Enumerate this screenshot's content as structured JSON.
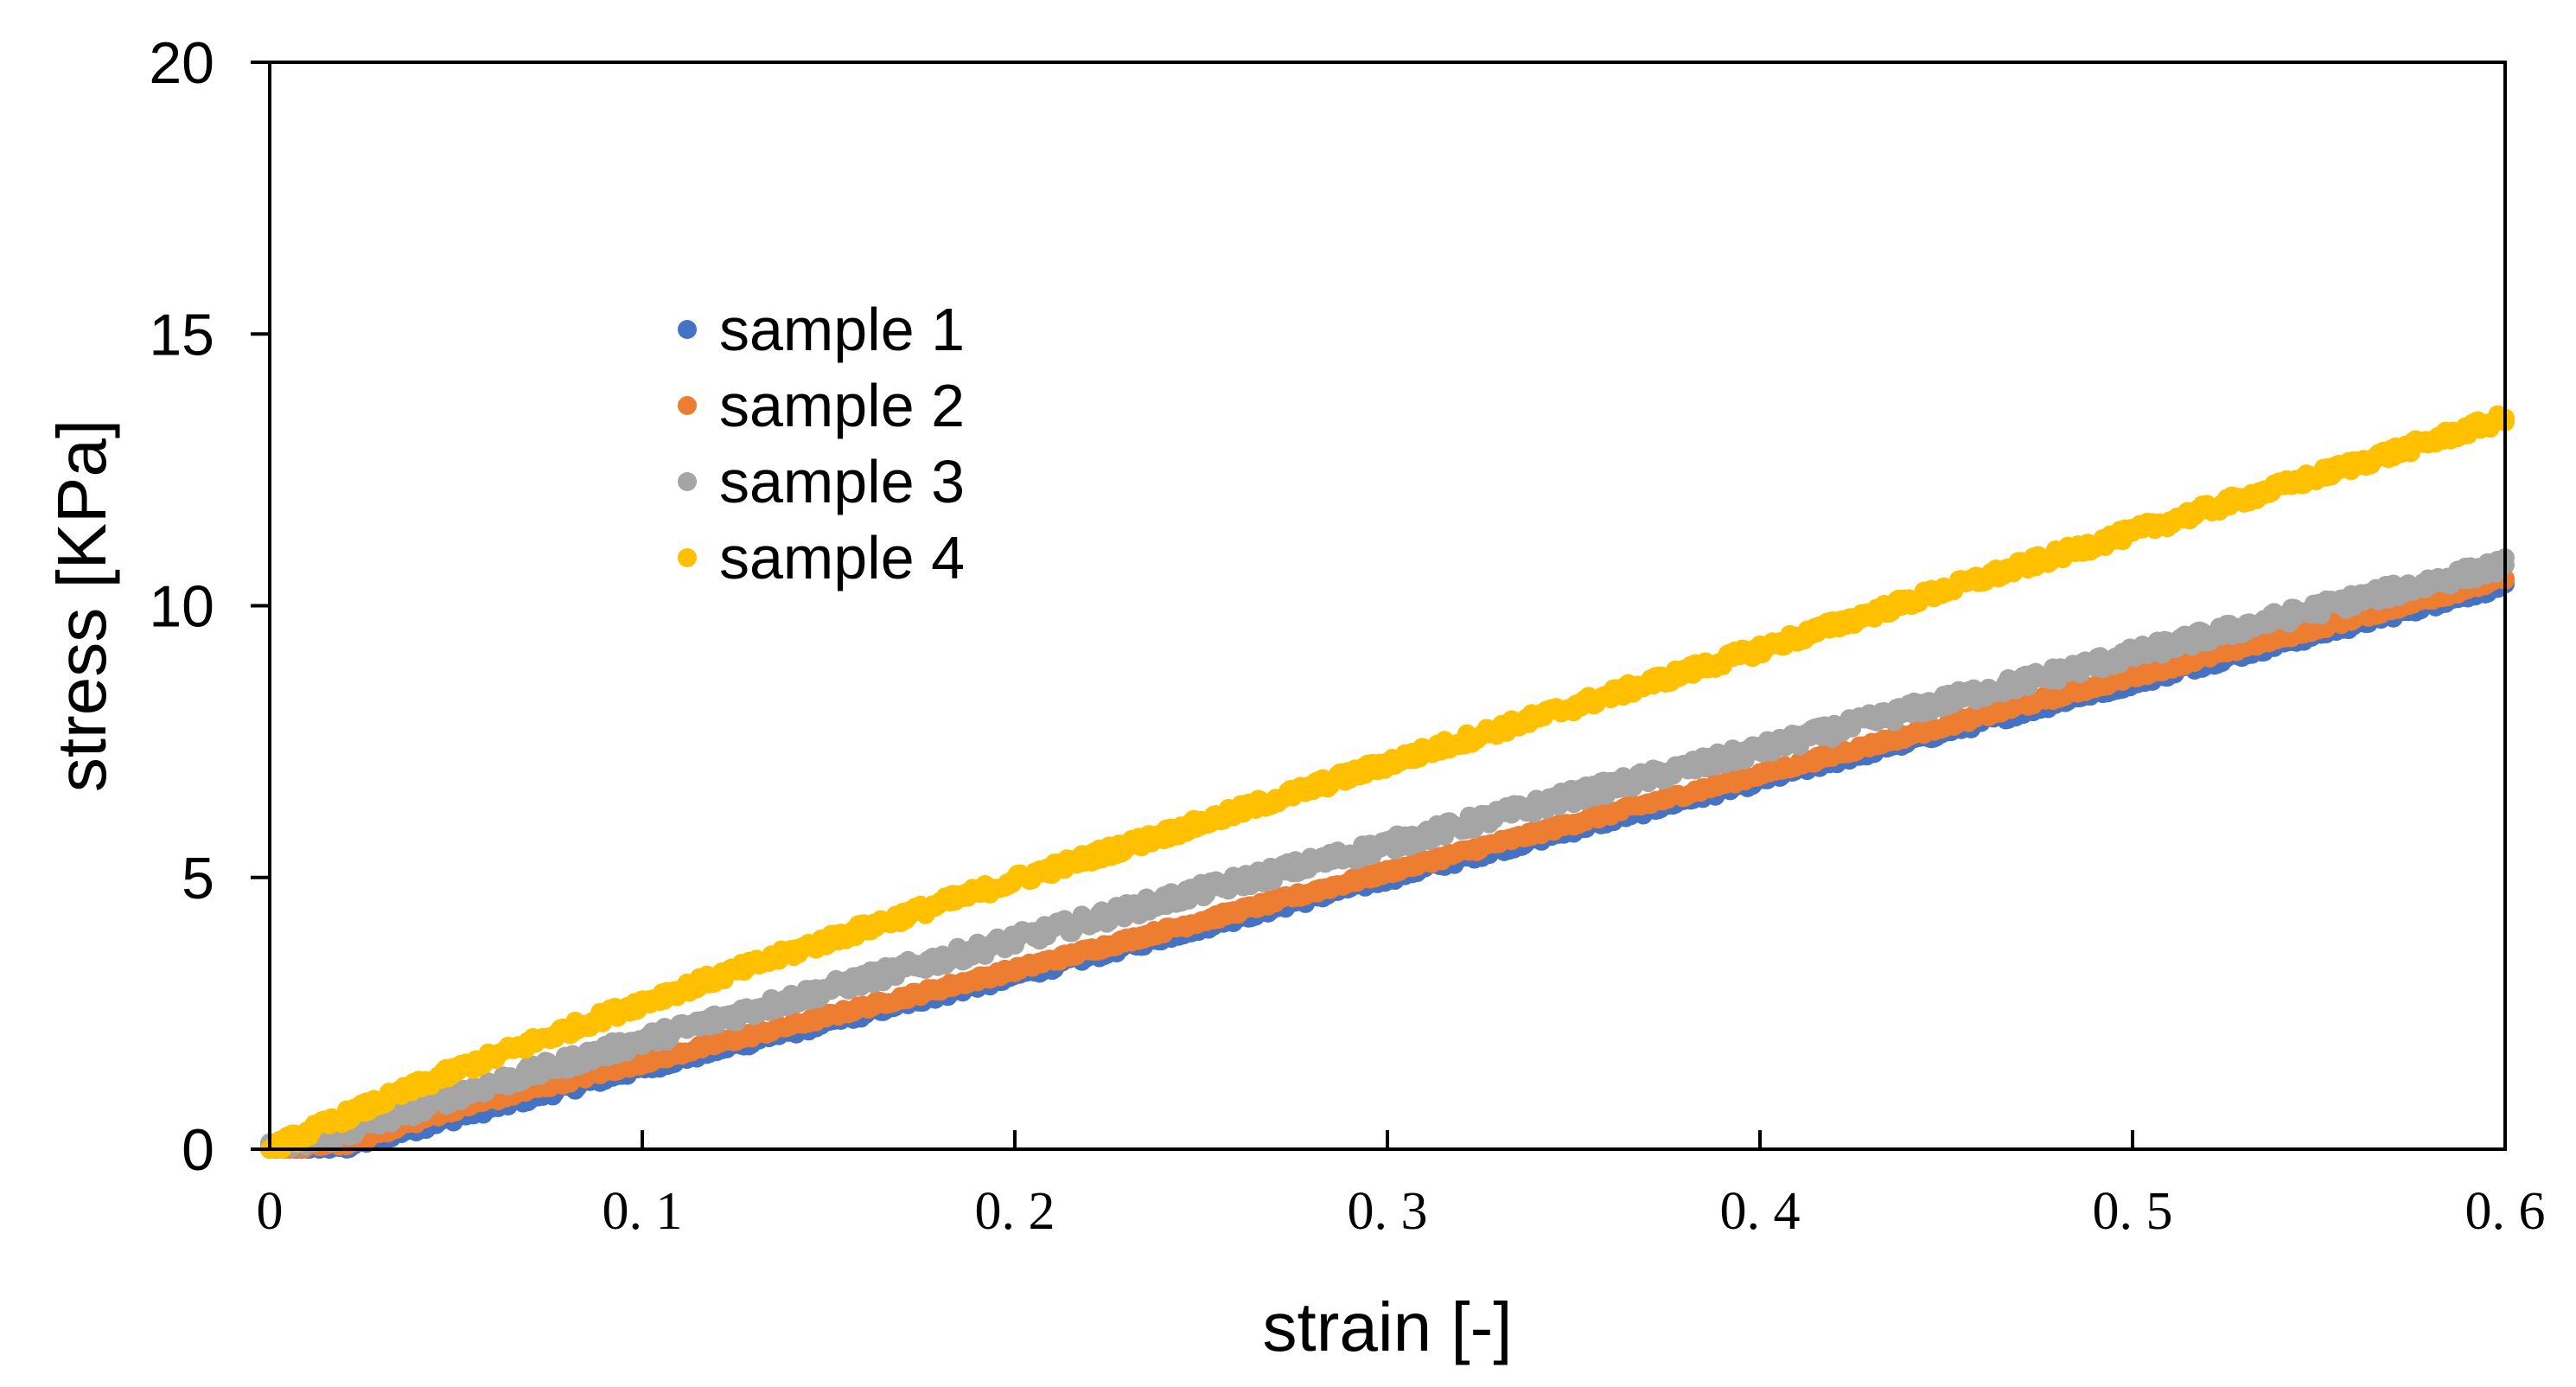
{
  "chart_data": {
    "type": "scatter",
    "title": "",
    "xlabel": "strain [-]",
    "ylabel": "stress [KPa]",
    "xlim": [
      0,
      0.6
    ],
    "ylim": [
      0,
      20
    ],
    "xticks": [
      0,
      0.1,
      0.2,
      0.3,
      0.4,
      0.5,
      0.6
    ],
    "xtick_labels": [
      "0",
      "0. 1",
      "0. 2",
      "0. 3",
      "0. 4",
      "0. 5",
      "0. 6"
    ],
    "yticks": [
      0,
      5,
      10,
      15,
      20
    ],
    "ytick_labels": [
      "0",
      "5",
      "10",
      "15",
      "20"
    ],
    "grid": false,
    "legend_position": "upper-left-center",
    "series": [
      {
        "name": "sample 1",
        "color": "#4472C4",
        "x": [
          0,
          0.02,
          0.05,
          0.1,
          0.15,
          0.2,
          0.25,
          0.3,
          0.35,
          0.4,
          0.45,
          0.5,
          0.55,
          0.6
        ],
        "y": [
          0,
          0.05,
          0.6,
          1.5,
          2.35,
          3.2,
          4.1,
          5.0,
          5.9,
          6.8,
          7.7,
          8.6,
          9.5,
          10.4
        ]
      },
      {
        "name": "sample 2",
        "color": "#ED7D31",
        "x": [
          0,
          0.02,
          0.05,
          0.1,
          0.15,
          0.2,
          0.25,
          0.3,
          0.35,
          0.4,
          0.45,
          0.5,
          0.55,
          0.6
        ],
        "y": [
          0,
          0.1,
          0.75,
          1.6,
          2.45,
          3.3,
          4.2,
          5.1,
          6.0,
          6.9,
          7.8,
          8.7,
          9.6,
          10.5
        ]
      },
      {
        "name": "sample 3",
        "color": "#A5A5A5",
        "x": [
          0,
          0.02,
          0.05,
          0.1,
          0.15,
          0.2,
          0.25,
          0.3,
          0.35,
          0.4,
          0.45,
          0.5,
          0.55,
          0.6
        ],
        "y": [
          0,
          0.3,
          1.0,
          2.0,
          2.95,
          3.85,
          4.75,
          5.6,
          6.5,
          7.35,
          8.25,
          9.1,
          9.95,
          10.75
        ]
      },
      {
        "name": "sample 4",
        "color": "#FFC000",
        "x": [
          0,
          0.02,
          0.05,
          0.1,
          0.15,
          0.2,
          0.25,
          0.3,
          0.35,
          0.4,
          0.45,
          0.5,
          0.55,
          0.6
        ],
        "y": [
          0,
          0.6,
          1.45,
          2.7,
          3.85,
          4.95,
          6.0,
          7.1,
          8.15,
          9.2,
          10.3,
          11.35,
          12.4,
          13.45
        ]
      }
    ]
  }
}
